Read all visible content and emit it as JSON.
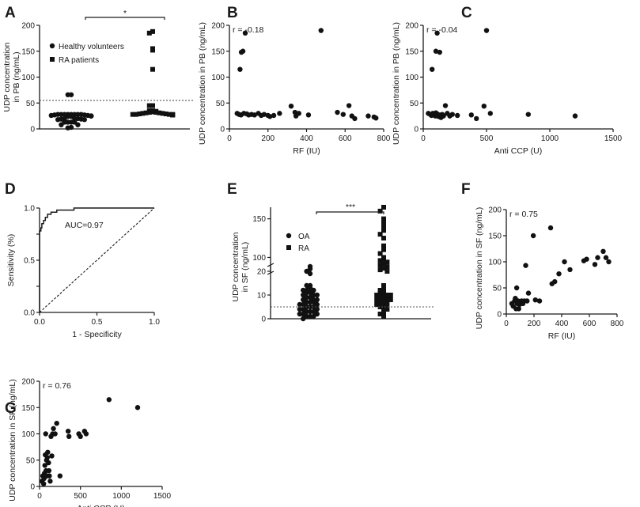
{
  "figure": {
    "panels": [
      {
        "letter": "A"
      },
      {
        "letter": "B"
      },
      {
        "letter": "C"
      },
      {
        "letter": "D"
      },
      {
        "letter": "E"
      },
      {
        "letter": "F"
      },
      {
        "letter": "G"
      }
    ]
  },
  "chart_data": [
    {
      "id": "A",
      "type": "scatter",
      "subtype": "dot_column",
      "ylabel": "UDP concentration\nin PB (ng/mL)",
      "ylim": [
        0,
        200
      ],
      "yticks": [
        0,
        50,
        100,
        150,
        200
      ],
      "categories": [
        "Healthy volunteers",
        "RA patients"
      ],
      "series": [
        {
          "name": "Healthy volunteers",
          "marker": "circle",
          "values": [
            66,
            66,
            28,
            28,
            28,
            28,
            28,
            28,
            28,
            28,
            27,
            27,
            26,
            26,
            25,
            25,
            25,
            25,
            24,
            24,
            20,
            20,
            20,
            19,
            19,
            18,
            18,
            13,
            13,
            13,
            13,
            8,
            8,
            3,
            2
          ]
        },
        {
          "name": "RA patients",
          "marker": "square",
          "values": [
            188,
            185,
            155,
            152,
            115,
            45,
            45,
            35,
            35,
            34,
            33,
            32,
            32,
            31,
            31,
            30,
            30,
            29,
            29,
            28,
            28,
            28,
            28,
            27,
            27,
            27
          ]
        }
      ],
      "reference_line": 55,
      "significance": "*"
    },
    {
      "id": "B",
      "type": "scatter",
      "annotation": "r = -0.18",
      "xlabel": "RF (IU)",
      "ylabel": "UDP concentration in PB  (ng/mL)",
      "xlim": [
        0,
        800
      ],
      "ylim": [
        0,
        200
      ],
      "xticks": [
        0,
        200,
        400,
        600,
        800
      ],
      "yticks": [
        0,
        50,
        100,
        150,
        200
      ],
      "points": [
        [
          82,
          185
        ],
        [
          70,
          150
        ],
        [
          62,
          148
        ],
        [
          55,
          115
        ],
        [
          475,
          190
        ],
        [
          40,
          30
        ],
        [
          50,
          28
        ],
        [
          60,
          27
        ],
        [
          75,
          30
        ],
        [
          90,
          29
        ],
        [
          100,
          27
        ],
        [
          115,
          28
        ],
        [
          130,
          27
        ],
        [
          150,
          30
        ],
        [
          165,
          26
        ],
        [
          180,
          28
        ],
        [
          200,
          26
        ],
        [
          210,
          24
        ],
        [
          230,
          26
        ],
        [
          260,
          30
        ],
        [
          320,
          44
        ],
        [
          340,
          32
        ],
        [
          345,
          25
        ],
        [
          360,
          30
        ],
        [
          410,
          27
        ],
        [
          560,
          32
        ],
        [
          590,
          28
        ],
        [
          620,
          45
        ],
        [
          635,
          25
        ],
        [
          650,
          20
        ],
        [
          720,
          25
        ],
        [
          750,
          23
        ],
        [
          760,
          21
        ]
      ]
    },
    {
      "id": "C",
      "type": "scatter",
      "annotation": "r = -0.04",
      "xlabel": "Anti CCP (U)",
      "ylabel": "UDP concentration in PB (ng/mL)",
      "xlim": [
        0,
        1500
      ],
      "ylim": [
        0,
        200
      ],
      "xticks": [
        0,
        500,
        1000,
        1500
      ],
      "yticks": [
        0,
        50,
        100,
        150,
        200
      ],
      "points": [
        [
          110,
          185
        ],
        [
          100,
          150
        ],
        [
          130,
          148
        ],
        [
          70,
          115
        ],
        [
          500,
          190
        ],
        [
          40,
          30
        ],
        [
          55,
          28
        ],
        [
          65,
          26
        ],
        [
          75,
          30
        ],
        [
          85,
          27
        ],
        [
          95,
          25
        ],
        [
          100,
          31
        ],
        [
          110,
          29
        ],
        [
          120,
          24
        ],
        [
          130,
          27
        ],
        [
          140,
          22
        ],
        [
          150,
          28
        ],
        [
          160,
          25
        ],
        [
          175,
          45
        ],
        [
          190,
          30
        ],
        [
          210,
          25
        ],
        [
          230,
          28
        ],
        [
          270,
          26
        ],
        [
          380,
          27
        ],
        [
          420,
          20
        ],
        [
          480,
          44
        ],
        [
          530,
          30
        ],
        [
          830,
          28
        ],
        [
          1200,
          25
        ]
      ]
    },
    {
      "id": "D",
      "type": "line",
      "subtype": "roc",
      "annotation": "AUC=0.97",
      "xlabel": "1 - Specificity",
      "ylabel": "Sensitivity (%)",
      "xlim": [
        0,
        1.0
      ],
      "ylim": [
        0,
        1.0
      ],
      "xticks": [
        0.0,
        0.5,
        1.0
      ],
      "yticks": [
        0.0,
        0.25,
        0.5,
        0.75,
        1.0
      ],
      "xtick_labels": [
        "0.0",
        "0.5",
        "1.0"
      ],
      "ytick_labels": [
        "0.0",
        "",
        "0.5",
        "",
        "1.0"
      ],
      "series": [
        {
          "name": "ROC",
          "style": "solid",
          "points": [
            [
              0,
              0
            ],
            [
              0,
              0.78
            ],
            [
              0.012,
              0.78
            ],
            [
              0.012,
              0.81
            ],
            [
              0.02,
              0.81
            ],
            [
              0.02,
              0.85
            ],
            [
              0.035,
              0.85
            ],
            [
              0.035,
              0.88
            ],
            [
              0.05,
              0.88
            ],
            [
              0.05,
              0.91
            ],
            [
              0.07,
              0.91
            ],
            [
              0.07,
              0.94
            ],
            [
              0.1,
              0.94
            ],
            [
              0.1,
              0.96
            ],
            [
              0.15,
              0.96
            ],
            [
              0.15,
              0.98
            ],
            [
              0.3,
              0.98
            ],
            [
              0.3,
              1.0
            ],
            [
              1.0,
              1.0
            ]
          ]
        },
        {
          "name": "Reference",
          "style": "dashed",
          "points": [
            [
              0,
              0
            ],
            [
              1.0,
              1.0
            ]
          ]
        }
      ]
    },
    {
      "id": "E",
      "type": "scatter",
      "subtype": "dot_column_broken_axis",
      "ylabel": "UDP concentration\nin SF (ng/mL)",
      "yticks": [
        0,
        10,
        20,
        100,
        150
      ],
      "ysegments": [
        [
          0,
          22
        ],
        [
          80,
          165
        ]
      ],
      "categories": [
        "OA",
        "RA"
      ],
      "series": [
        {
          "name": "OA",
          "marker": "circle",
          "values": [
            22,
            21,
            20,
            19,
            14,
            14,
            13,
            12,
            12,
            12,
            11,
            11,
            10,
            10,
            10,
            9,
            9,
            8,
            8,
            8,
            7,
            7,
            7,
            6,
            6,
            6,
            5,
            5,
            5,
            4,
            4,
            4,
            3,
            3,
            3,
            2,
            2,
            2,
            1,
            1,
            1,
            0
          ]
        },
        {
          "name": "RA",
          "marker": "square",
          "values": [
            165,
            160,
            150,
            145,
            140,
            135,
            130,
            125,
            115,
            110,
            105,
            100,
            98,
            96,
            94,
            92,
            90,
            88,
            86,
            84,
            82,
            14,
            12,
            12,
            11,
            11,
            10,
            10,
            10,
            9,
            9,
            8,
            8,
            8,
            7,
            7,
            6,
            6,
            5,
            5,
            4,
            3,
            2,
            1
          ]
        }
      ],
      "reference_line": 3,
      "significance": "***"
    },
    {
      "id": "F",
      "type": "scatter",
      "annotation": "r = 0.75",
      "xlabel": "RF (IU)",
      "ylabel": "UDP concentration in SF  (ng/mL)",
      "xlim": [
        0,
        800
      ],
      "ylim": [
        0,
        200
      ],
      "xticks": [
        0,
        200,
        400,
        600,
        800
      ],
      "yticks": [
        0,
        50,
        100,
        150,
        200
      ],
      "points": [
        [
          40,
          20
        ],
        [
          50,
          15
        ],
        [
          60,
          25
        ],
        [
          65,
          30
        ],
        [
          70,
          10
        ],
        [
          75,
          50
        ],
        [
          80,
          20
        ],
        [
          85,
          25
        ],
        [
          90,
          10
        ],
        [
          95,
          18
        ],
        [
          100,
          22
        ],
        [
          110,
          25
        ],
        [
          120,
          20
        ],
        [
          130,
          25
        ],
        [
          140,
          93
        ],
        [
          150,
          25
        ],
        [
          160,
          40
        ],
        [
          195,
          150
        ],
        [
          210,
          27
        ],
        [
          240,
          25
        ],
        [
          320,
          165
        ],
        [
          330,
          58
        ],
        [
          350,
          62
        ],
        [
          380,
          77
        ],
        [
          420,
          100
        ],
        [
          460,
          85
        ],
        [
          560,
          102
        ],
        [
          580,
          105
        ],
        [
          640,
          95
        ],
        [
          660,
          108
        ],
        [
          700,
          120
        ],
        [
          720,
          108
        ],
        [
          740,
          100
        ]
      ]
    },
    {
      "id": "G",
      "type": "scatter",
      "annotation": "r = 0.76",
      "xlabel": "Anti CCP (U)",
      "ylabel": "UDP concentration in SF (ng/mL)",
      "xlim": [
        0,
        1500
      ],
      "ylim": [
        0,
        200
      ],
      "xticks": [
        0,
        500,
        1000,
        1500
      ],
      "yticks": [
        0,
        50,
        100,
        150,
        200
      ],
      "points": [
        [
          30,
          10
        ],
        [
          40,
          20
        ],
        [
          50,
          5
        ],
        [
          55,
          15
        ],
        [
          60,
          25
        ],
        [
          65,
          40
        ],
        [
          70,
          60
        ],
        [
          75,
          100
        ],
        [
          80,
          30
        ],
        [
          85,
          50
        ],
        [
          90,
          20
        ],
        [
          95,
          55
        ],
        [
          100,
          65
        ],
        [
          110,
          45
        ],
        [
          115,
          30
        ],
        [
          120,
          20
        ],
        [
          130,
          10
        ],
        [
          140,
          95
        ],
        [
          150,
          58
        ],
        [
          160,
          100
        ],
        [
          170,
          110
        ],
        [
          190,
          100
        ],
        [
          210,
          120
        ],
        [
          250,
          20
        ],
        [
          350,
          105
        ],
        [
          360,
          95
        ],
        [
          480,
          100
        ],
        [
          500,
          95
        ],
        [
          550,
          105
        ],
        [
          570,
          100
        ],
        [
          850,
          165
        ],
        [
          1200,
          150
        ]
      ]
    }
  ]
}
